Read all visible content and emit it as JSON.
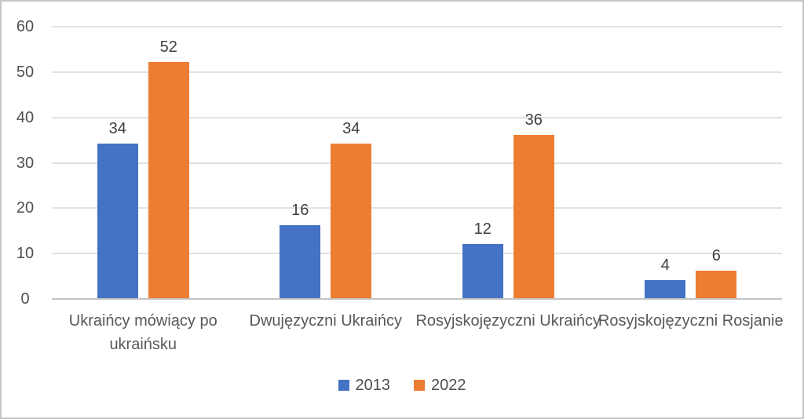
{
  "chart_data": {
    "type": "bar",
    "title": "",
    "xlabel": "",
    "ylabel": "",
    "categories": [
      "Ukraińcy mówiący po ukraińsku",
      "Dwujęzyczni Ukraińcy",
      "Rosyjskojęzyczni Ukraińcy",
      "Rosyjskojęzyczni Rosjanie"
    ],
    "series": [
      {
        "name": "2013",
        "color": "#4472C4",
        "values": [
          34,
          16,
          12,
          4
        ]
      },
      {
        "name": "2022",
        "color": "#ED7D31",
        "values": [
          52,
          34,
          36,
          6
        ]
      }
    ],
    "yticks": [
      0,
      10,
      20,
      30,
      40,
      50,
      60
    ],
    "ylim": [
      0,
      60
    ],
    "grid": true,
    "data_labels": true,
    "legend_position": "bottom"
  },
  "colors": {
    "background": "#FFFFFF",
    "border": "#C6C6C6",
    "gridline": "#E2E2E2",
    "axis_line": "#C3C3C3",
    "tick_text": "#4F4F4F",
    "data_label_text": "#3F3F3F",
    "category_text": "#585858"
  }
}
